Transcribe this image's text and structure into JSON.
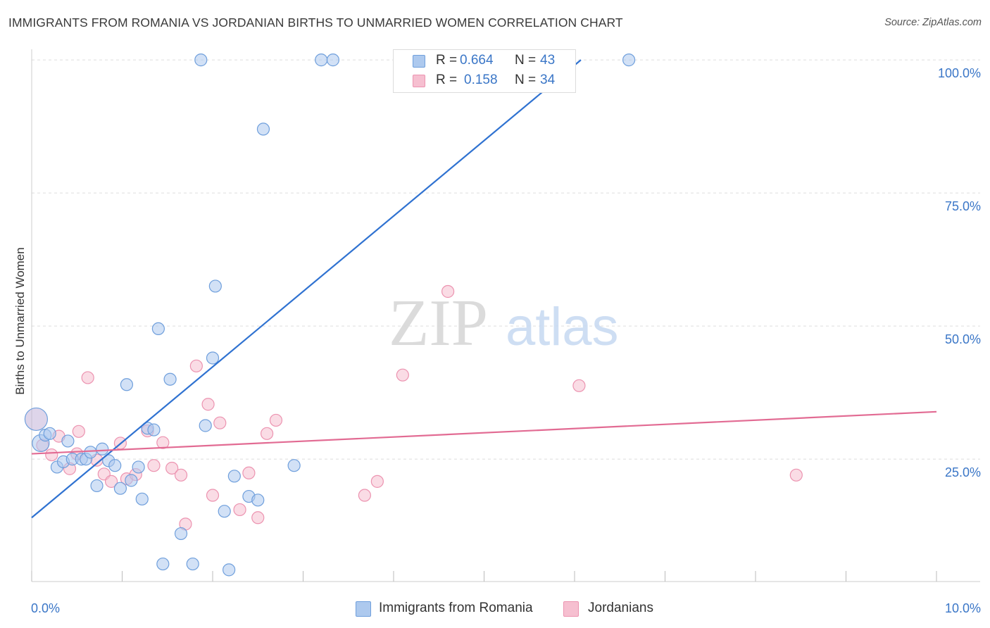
{
  "title": "IMMIGRANTS FROM ROMANIA VS JORDANIAN BIRTHS TO UNMARRIED WOMEN CORRELATION CHART",
  "source": "Source: ZipAtlas.com",
  "watermark": {
    "zip": "ZIP",
    "atlas": "atlas"
  },
  "legend": {
    "rows": [
      {
        "r_label": "R =",
        "r_value": "0.664",
        "n_label": "N =",
        "n_value": "43"
      },
      {
        "r_label": "R =",
        "r_value": "0.158",
        "n_label": "N =",
        "n_value": "34"
      }
    ]
  },
  "bottom_legend": [
    "Immigrants from Romania",
    "Jordanians"
  ],
  "colors": {
    "blue_fill": "#adc9ee",
    "blue_stroke": "#6f9fdc",
    "blue_line": "#2f72d1",
    "pink_fill": "#f6bfd0",
    "pink_stroke": "#ec93b0",
    "pink_line": "#e26b93",
    "axis_text": "#3a76c7",
    "grid": "#dddddd"
  },
  "chart_data": {
    "type": "scatter",
    "title": "IMMIGRANTS FROM ROMANIA VS JORDANIAN BIRTHS TO UNMARRIED WOMEN CORRELATION CHART",
    "xlabel": "",
    "ylabel": "Births to Unmarried Women",
    "xlim": [
      0,
      10
    ],
    "ylim": [
      2,
      102
    ],
    "x_tick_labels": [
      "0.0%",
      "10.0%"
    ],
    "y_ticks": [
      25,
      50,
      75,
      100
    ],
    "y_tick_labels": [
      "25.0%",
      "50.0%",
      "75.0%",
      "100.0%"
    ],
    "grid": true,
    "legend_position": "top-center",
    "series": [
      {
        "name": "Immigrants from Romania",
        "color": "#6f9fdc",
        "points": [
          [
            0.05,
            32.5
          ],
          [
            0.1,
            28
          ],
          [
            0.15,
            29.5
          ],
          [
            0.2,
            29.8
          ],
          [
            0.28,
            23.5
          ],
          [
            0.35,
            24.5
          ],
          [
            0.4,
            28.4
          ],
          [
            0.45,
            25
          ],
          [
            0.55,
            25
          ],
          [
            0.6,
            25
          ],
          [
            0.65,
            26.3
          ],
          [
            0.72,
            20
          ],
          [
            0.78,
            26.9
          ],
          [
            0.85,
            24.7
          ],
          [
            0.92,
            23.8
          ],
          [
            0.98,
            19.5
          ],
          [
            1.05,
            39
          ],
          [
            1.1,
            21
          ],
          [
            1.18,
            23.5
          ],
          [
            1.22,
            17.5
          ],
          [
            1.28,
            30.8
          ],
          [
            1.35,
            30.5
          ],
          [
            1.4,
            49.5
          ],
          [
            1.45,
            5.3
          ],
          [
            1.53,
            40
          ],
          [
            1.65,
            11
          ],
          [
            1.78,
            5.3
          ],
          [
            1.87,
            100
          ],
          [
            1.92,
            31.3
          ],
          [
            2.0,
            44
          ],
          [
            2.03,
            57.5
          ],
          [
            2.13,
            15.2
          ],
          [
            2.18,
            4.2
          ],
          [
            2.24,
            21.8
          ],
          [
            2.4,
            18
          ],
          [
            2.5,
            17.3
          ],
          [
            2.56,
            87
          ],
          [
            2.9,
            23.8
          ],
          [
            3.2,
            100
          ],
          [
            3.33,
            100
          ],
          [
            4.2,
            100
          ],
          [
            4.8,
            100
          ],
          [
            6.6,
            100
          ]
        ]
      },
      {
        "name": "Jordanians",
        "color": "#ec93b0",
        "points": [
          [
            0.12,
            27.6
          ],
          [
            0.22,
            25.8
          ],
          [
            0.3,
            29.3
          ],
          [
            0.42,
            23.2
          ],
          [
            0.5,
            26
          ],
          [
            0.52,
            30.2
          ],
          [
            0.62,
            40.3
          ],
          [
            0.72,
            24.8
          ],
          [
            0.8,
            22.2
          ],
          [
            0.88,
            20.8
          ],
          [
            0.98,
            28
          ],
          [
            1.05,
            21.3
          ],
          [
            1.15,
            22.1
          ],
          [
            1.28,
            30.3
          ],
          [
            1.35,
            23.8
          ],
          [
            1.45,
            28.1
          ],
          [
            1.55,
            23.3
          ],
          [
            1.65,
            22
          ],
          [
            1.7,
            12.8
          ],
          [
            1.82,
            42.5
          ],
          [
            1.95,
            35.3
          ],
          [
            2.0,
            18.2
          ],
          [
            2.08,
            31.8
          ],
          [
            2.3,
            15.5
          ],
          [
            2.4,
            22.4
          ],
          [
            2.5,
            14
          ],
          [
            2.6,
            29.8
          ],
          [
            2.7,
            32.3
          ],
          [
            3.68,
            18.2
          ],
          [
            3.82,
            20.8
          ],
          [
            4.1,
            40.8
          ],
          [
            4.6,
            56.5
          ],
          [
            6.05,
            38.8
          ],
          [
            8.45,
            22
          ]
        ]
      }
    ],
    "trend_lines": [
      {
        "name": "Immigrants from Romania",
        "x": [
          0,
          6.07
        ],
        "y": [
          14,
          100
        ],
        "color": "#2f72d1"
      },
      {
        "name": "Jordanians",
        "x": [
          0,
          10
        ],
        "y": [
          26,
          33.9
        ],
        "color": "#e26b93"
      }
    ]
  }
}
